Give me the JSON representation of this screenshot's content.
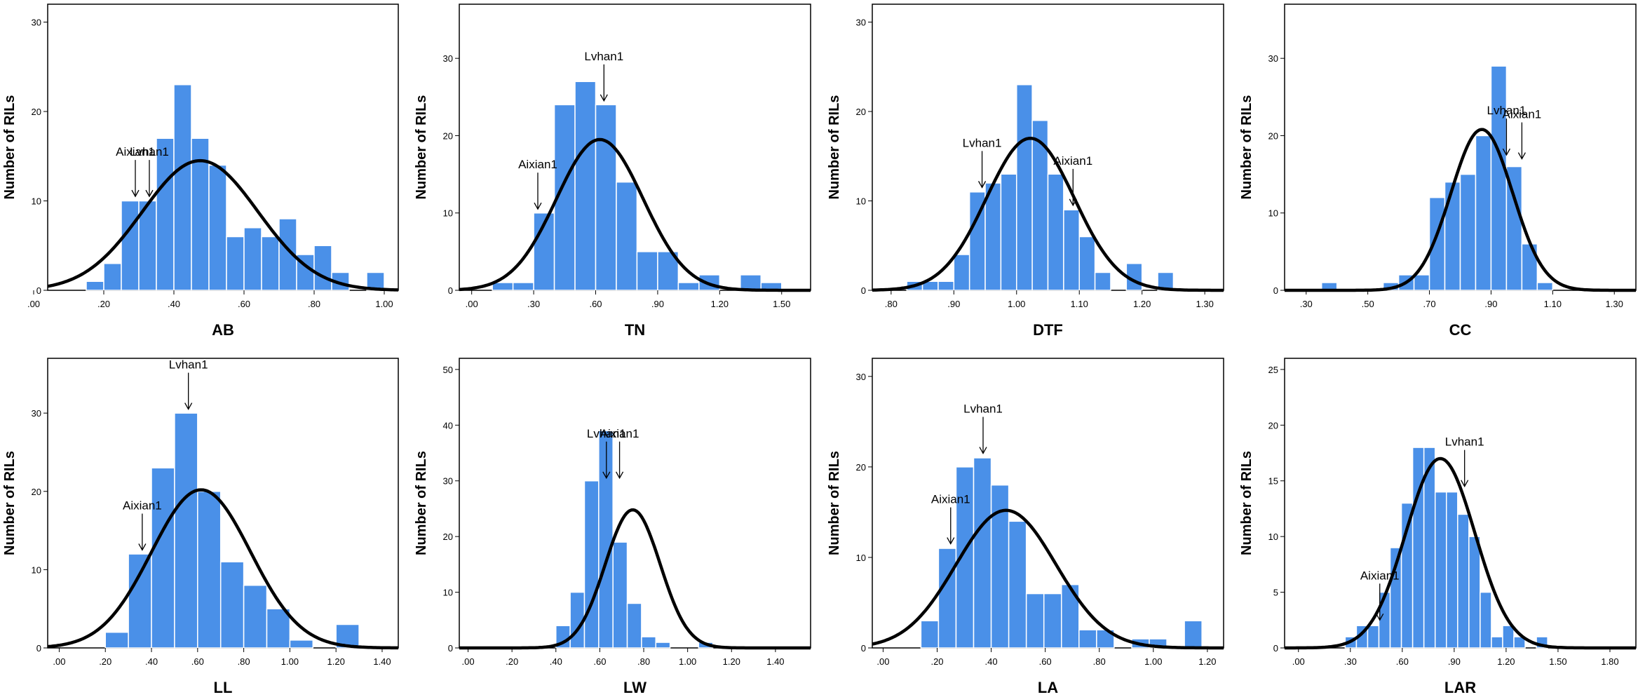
{
  "figure": {
    "background": "#ffffff",
    "bar_color": "#4a90e8",
    "curve_color": "#000000"
  },
  "chart_data": [
    {
      "type": "bar",
      "title": "",
      "xlabel": "AB",
      "ylabel": "Number of RILs",
      "xlim": [
        0.04,
        1.04
      ],
      "ylim": [
        0,
        32
      ],
      "xticks": [
        0.0,
        0.2,
        0.4,
        0.6,
        0.8,
        1.0
      ],
      "xtick_labels": [
        ".00",
        ".20",
        ".40",
        ".60",
        ".80",
        "1.00"
      ],
      "yticks": [
        0,
        10,
        20,
        30
      ],
      "ytick_labels": [
        "0",
        "10",
        "20",
        "30"
      ],
      "bin_start": 0.15,
      "bin_width": 0.05,
      "values": [
        1,
        3,
        10,
        10,
        17,
        23,
        17,
        14,
        6,
        7,
        6,
        8,
        4,
        5,
        2,
        0,
        2
      ],
      "normal_curve": {
        "mean": 0.475,
        "sd": 0.165,
        "peak": 14.5
      },
      "annotations": [
        {
          "label": "Aixian1",
          "x": 0.29,
          "y": 10.5
        },
        {
          "label": "Lvhan1",
          "x": 0.33,
          "y": 10.5
        }
      ]
    },
    {
      "type": "bar",
      "title": "",
      "xlabel": "TN",
      "ylabel": "Number of RILs",
      "xlim": [
        -0.06,
        1.64
      ],
      "ylim": [
        0,
        37
      ],
      "xticks": [
        0.0,
        0.3,
        0.6,
        0.9,
        1.2,
        1.5
      ],
      "xtick_labels": [
        ".00",
        ".30",
        ".60",
        ".90",
        "1.20",
        "1.50"
      ],
      "yticks": [
        0,
        10,
        20,
        30
      ],
      "ytick_labels": [
        "0",
        "10",
        "20",
        "30"
      ],
      "bin_start": 0.1,
      "bin_width": 0.1,
      "values": [
        1,
        1,
        10,
        24,
        27,
        24,
        14,
        5,
        5,
        1,
        2,
        0,
        2,
        1
      ],
      "normal_curve": {
        "mean": 0.62,
        "sd": 0.21,
        "peak": 19.5
      },
      "annotations": [
        {
          "label": "Aixian1",
          "x": 0.32,
          "y": 10.5
        },
        {
          "label": "Lvhan1",
          "x": 0.64,
          "y": 24.5
        }
      ]
    },
    {
      "type": "bar",
      "title": "",
      "xlabel": "DTF",
      "ylabel": "Number of RILs",
      "xlim": [
        0.77,
        1.33
      ],
      "ylim": [
        0,
        32
      ],
      "xticks": [
        0.8,
        0.9,
        1.0,
        1.1,
        1.2,
        1.3
      ],
      "xtick_labels": [
        ".80",
        ".90",
        "1.00",
        "1.10",
        "1.20",
        "1.30"
      ],
      "yticks": [
        0,
        10,
        20,
        30
      ],
      "ytick_labels": [
        "0",
        "10",
        "20",
        "30"
      ],
      "bin_start": 0.825,
      "bin_width": 0.025,
      "values": [
        1,
        1,
        1,
        4,
        11,
        12,
        13,
        23,
        19,
        13,
        9,
        6,
        2,
        0,
        3,
        0,
        2
      ],
      "normal_curve": {
        "mean": 1.022,
        "sd": 0.07,
        "peak": 17
      },
      "annotations": [
        {
          "label": "Lvhan1",
          "x": 0.945,
          "y": 11.5
        },
        {
          "label": "Aixian1",
          "x": 1.09,
          "y": 9.5
        }
      ]
    },
    {
      "type": "bar",
      "title": "",
      "xlabel": "CC",
      "ylabel": "Number of RILs",
      "xlim": [
        0.23,
        1.37
      ],
      "ylim": [
        0,
        37
      ],
      "xticks": [
        0.3,
        0.5,
        0.7,
        0.9,
        1.1,
        1.3
      ],
      "xtick_labels": [
        ".30",
        ".50",
        ".70",
        ".90",
        "1.10",
        "1.30"
      ],
      "yticks": [
        0,
        10,
        20,
        30
      ],
      "ytick_labels": [
        "0",
        "10",
        "20",
        "30"
      ],
      "bin_start": 0.35,
      "bin_width": 0.05,
      "values": [
        1,
        0,
        0,
        0,
        1,
        2,
        2,
        12,
        14,
        15,
        20,
        29,
        16,
        6,
        1
      ],
      "normal_curve": {
        "mean": 0.87,
        "sd": 0.1,
        "peak": 20.8
      },
      "annotations": [
        {
          "label": "Lvhan1",
          "x": 0.95,
          "y": 17.5
        },
        {
          "label": "Aixian1",
          "x": 1.0,
          "y": 17.0
        }
      ]
    },
    {
      "type": "bar",
      "title": "",
      "xlabel": "LL",
      "ylabel": "Number of RILs",
      "xlim": [
        -0.05,
        1.47
      ],
      "ylim": [
        0,
        37
      ],
      "xticks": [
        0.0,
        0.2,
        0.4,
        0.6,
        0.8,
        1.0,
        1.2,
        1.4
      ],
      "xtick_labels": [
        ".00",
        ".20",
        ".40",
        ".60",
        ".80",
        "1.00",
        "1.20",
        "1.40"
      ],
      "yticks": [
        0,
        10,
        20,
        30
      ],
      "ytick_labels": [
        "0",
        "10",
        "20",
        "30"
      ],
      "bin_start": 0.2,
      "bin_width": 0.1,
      "values": [
        2,
        12,
        23,
        30,
        20,
        11,
        8,
        5,
        1,
        0,
        3
      ],
      "normal_curve": {
        "mean": 0.615,
        "sd": 0.215,
        "peak": 20.2
      },
      "annotations": [
        {
          "label": "Aixian1",
          "x": 0.36,
          "y": 12.5
        },
        {
          "label": "Lvhan1",
          "x": 0.56,
          "y": 30.5
        }
      ]
    },
    {
      "type": "bar",
      "title": "",
      "xlabel": "LW",
      "ylabel": "Number of RILs",
      "xlim": [
        -0.04,
        1.56
      ],
      "ylim": [
        0,
        52
      ],
      "xticks": [
        0.0,
        0.2,
        0.4,
        0.6,
        0.8,
        1.0,
        1.2,
        1.4
      ],
      "xtick_labels": [
        ".00",
        ".20",
        ".40",
        ".60",
        ".80",
        "1.00",
        "1.20",
        "1.40"
      ],
      "yticks": [
        0,
        10,
        20,
        30,
        40,
        50
      ],
      "ytick_labels": [
        "0",
        "10",
        "20",
        "30",
        "40",
        "50"
      ],
      "bin_start": 0.4,
      "bin_width": 0.065,
      "values": [
        4,
        10,
        30,
        39,
        19,
        8,
        2,
        1,
        0,
        0,
        1
      ],
      "normal_curve": {
        "mean": 0.75,
        "sd": 0.125,
        "peak": 24.8
      },
      "annotations": [
        {
          "label": "Lvhan1",
          "x": 0.63,
          "y": 30.5
        },
        {
          "label": "Aixian1",
          "x": 0.69,
          "y": 30.5
        }
      ]
    },
    {
      "type": "bar",
      "title": "",
      "xlabel": "LA",
      "ylabel": "Number of RILs",
      "xlim": [
        -0.04,
        1.26
      ],
      "ylim": [
        0,
        32
      ],
      "xticks": [
        0.0,
        0.2,
        0.4,
        0.6,
        0.8,
        1.0,
        1.2
      ],
      "xtick_labels": [
        ".00",
        ".20",
        ".40",
        ".60",
        ".80",
        "1.00",
        "1.20"
      ],
      "yticks": [
        0,
        10,
        20,
        30
      ],
      "ytick_labels": [
        "0",
        "10",
        "20",
        "30"
      ],
      "bin_start": 0.14,
      "bin_width": 0.065,
      "values": [
        3,
        11,
        20,
        21,
        18,
        14,
        6,
        6,
        7,
        2,
        2,
        0,
        1,
        1,
        0,
        3
      ],
      "normal_curve": {
        "mean": 0.455,
        "sd": 0.185,
        "peak": 15.2
      },
      "annotations": [
        {
          "label": "Aixian1",
          "x": 0.25,
          "y": 11.5
        },
        {
          "label": "Lvhan1",
          "x": 0.37,
          "y": 21.5
        }
      ]
    },
    {
      "type": "bar",
      "title": "",
      "xlabel": "LAR",
      "ylabel": "Number of RILs",
      "xlim": [
        -0.08,
        1.95
      ],
      "ylim": [
        0,
        26
      ],
      "xticks": [
        0.0,
        0.3,
        0.6,
        0.9,
        1.2,
        1.5,
        1.8
      ],
      "xtick_labels": [
        ".00",
        ".30",
        ".60",
        ".90",
        "1.20",
        "1.50",
        "1.80"
      ],
      "yticks": [
        0,
        5,
        10,
        15,
        20,
        25
      ],
      "ytick_labels": [
        "0",
        "5",
        "10",
        "15",
        "20",
        "25"
      ],
      "bin_start": 0.27,
      "bin_width": 0.065,
      "values": [
        1,
        2,
        2,
        5,
        9,
        13,
        18,
        18,
        14,
        14,
        12,
        10,
        5,
        1,
        2,
        1,
        0,
        1
      ],
      "normal_curve": {
        "mean": 0.82,
        "sd": 0.2,
        "peak": 17
      },
      "annotations": [
        {
          "label": "Aixian1",
          "x": 0.47,
          "y": 2.5
        },
        {
          "label": "Lvhan1",
          "x": 0.96,
          "y": 14.5
        }
      ]
    }
  ]
}
